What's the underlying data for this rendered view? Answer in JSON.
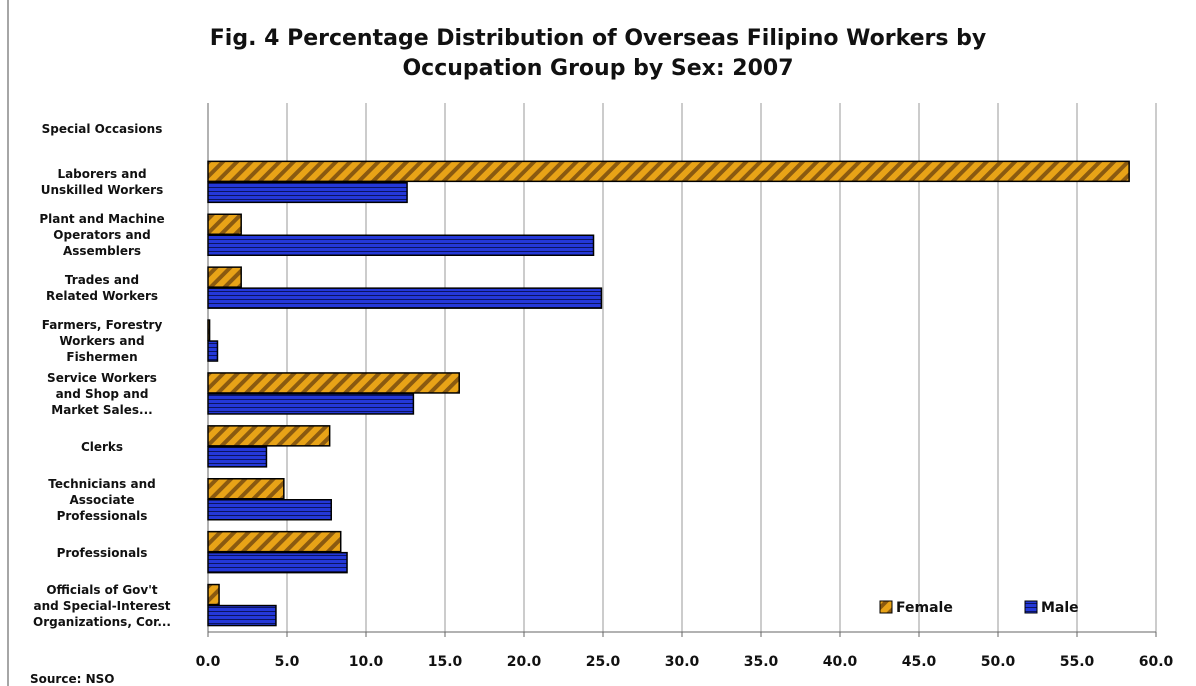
{
  "chart_data": {
    "type": "bar",
    "orientation": "horizontal",
    "title": "Fig. 4 Percentage Distribution of Overseas Filipino Workers by\nOccupation Group by Sex: 2007",
    "source": "Source: NSO",
    "categories": [
      "Special Occasions",
      "Laborers and\nUnskilled Workers",
      "Plant and Machine\nOperators and\nAssemblers",
      "Trades and\nRelated Workers",
      "Farmers, Forestry\nWorkers and\nFishermen",
      "Service Workers\nand Shop and\nMarket Sales...",
      "Clerks",
      "Technicians and\nAssociate\nProfessionals",
      "Professionals",
      "Officials of Gov't\nand Special-Interest\nOrganizations, Cor..."
    ],
    "series": [
      {
        "name": "Female",
        "color": "#e8a317",
        "values": [
          null,
          58.3,
          2.1,
          2.1,
          0.1,
          15.9,
          7.7,
          4.8,
          8.4,
          0.7
        ]
      },
      {
        "name": "Male",
        "color": "#2438d8",
        "values": [
          null,
          12.6,
          24.4,
          24.9,
          0.6,
          13.0,
          3.7,
          7.8,
          8.8,
          4.3
        ]
      }
    ],
    "xlim": [
      0,
      60
    ],
    "xticks": [
      {
        "value": 0,
        "label": "0.0"
      },
      {
        "value": 5,
        "label": "5.0"
      },
      {
        "value": 10,
        "label": "10.0"
      },
      {
        "value": 15,
        "label": "15.0"
      },
      {
        "value": 20,
        "label": "20.0"
      },
      {
        "value": 25,
        "label": "25.0"
      },
      {
        "value": 30,
        "label": "30.0"
      },
      {
        "value": 35,
        "label": "35.0"
      },
      {
        "value": 40,
        "label": "40.0"
      },
      {
        "value": 45,
        "label": "45.0"
      },
      {
        "value": 50,
        "label": "50.0"
      },
      {
        "value": 55,
        "label": "55.0"
      },
      {
        "value": 60,
        "label": "60.0"
      }
    ],
    "grid": true,
    "legend": "lower right"
  }
}
